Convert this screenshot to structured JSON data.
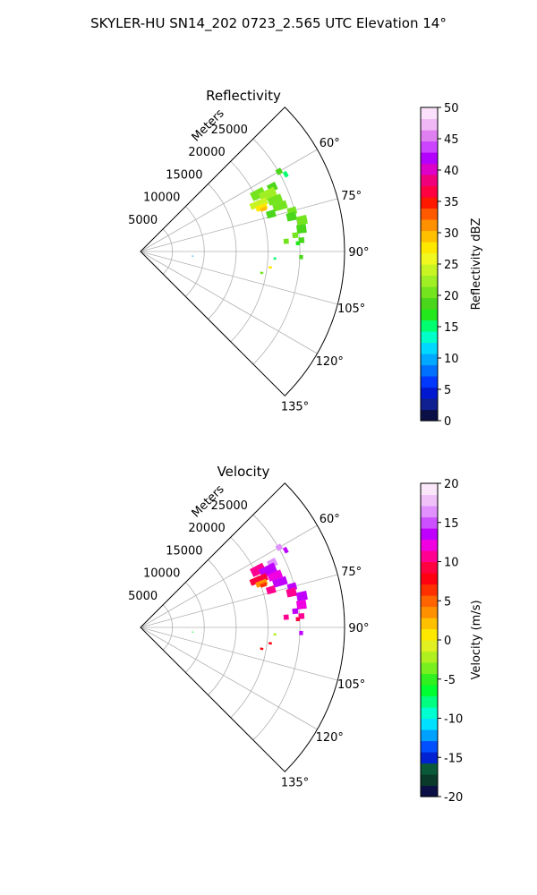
{
  "figure": {
    "title": "SKYLER-HU  SN14_202  0723_2.565 UTC Elevation 14°"
  },
  "chart_data": [
    {
      "type": "heatmap",
      "projection": "polar-sector",
      "title": "Reflectivity",
      "radial_label": "Meters",
      "r_ticks": [
        "5000",
        "10000",
        "15000",
        "20000",
        "25000"
      ],
      "r_max": 32000,
      "theta_range_deg": [
        45,
        135
      ],
      "theta_ticks": [
        "60°",
        "75°",
        "90°",
        "105°",
        "120°",
        "135°"
      ],
      "grid": true,
      "colorbar": {
        "label": "Reflectivity dBZ",
        "min": 0,
        "max": 50,
        "ticks": [
          "0",
          "5",
          "10",
          "15",
          "20",
          "25",
          "30",
          "35",
          "40",
          "45",
          "50"
        ],
        "colors": [
          "#0a1045",
          "#102090",
          "#0018d0",
          "#0038ff",
          "#0070ff",
          "#00a8ff",
          "#00d8ff",
          "#00ffc8",
          "#00ff70",
          "#22e81c",
          "#4ad61a",
          "#74e41e",
          "#a0ee24",
          "#c8f424",
          "#f0f820",
          "#ffe800",
          "#ffc000",
          "#ff9000",
          "#ff5a00",
          "#ff1800",
          "#ff0040",
          "#f0007a",
          "#dc00c8",
          "#b400ff",
          "#cc44ff",
          "#e080f0",
          "#f0b8f4",
          "#fae0fa"
        ]
      },
      "cells": [
        {
          "theta": 60,
          "r": 25100,
          "dr": 900,
          "dtheta": 2.0,
          "value": 18
        },
        {
          "theta": 62,
          "r": 25800,
          "dr": 600,
          "dtheta": 2.0,
          "value": 16
        },
        {
          "theta": 64,
          "r": 23000,
          "dr": 1400,
          "dtheta": 3.0,
          "value": 19
        },
        {
          "theta": 64,
          "r": 20500,
          "dr": 2200,
          "dtheta": 4.0,
          "value": 21
        },
        {
          "theta": 66,
          "r": 21900,
          "dr": 2600,
          "dtheta": 4.0,
          "value": 22
        },
        {
          "theta": 68,
          "r": 20000,
          "dr": 2800,
          "dtheta": 3.0,
          "value": 24
        },
        {
          "theta": 69,
          "r": 22600,
          "dr": 2200,
          "dtheta": 3.0,
          "value": 21
        },
        {
          "theta": 70,
          "r": 20200,
          "dr": 1800,
          "dtheta": 2.5,
          "value": 27
        },
        {
          "theta": 71,
          "r": 20400,
          "dr": 1000,
          "dtheta": 1.6,
          "value": 30
        },
        {
          "theta": 72,
          "r": 23000,
          "dr": 2200,
          "dtheta": 3.0,
          "value": 20
        },
        {
          "theta": 74,
          "r": 21300,
          "dr": 1400,
          "dtheta": 3.0,
          "value": 19
        },
        {
          "theta": 75,
          "r": 24600,
          "dr": 1400,
          "dtheta": 2.5,
          "value": 20
        },
        {
          "theta": 77,
          "r": 24300,
          "dr": 1500,
          "dtheta": 3.0,
          "value": 18
        },
        {
          "theta": 79,
          "r": 25800,
          "dr": 1600,
          "dtheta": 3.0,
          "value": 20
        },
        {
          "theta": 82,
          "r": 25500,
          "dr": 1500,
          "dtheta": 3.0,
          "value": 19
        },
        {
          "theta": 84,
          "r": 24400,
          "dr": 900,
          "dtheta": 2.0,
          "value": 20
        },
        {
          "theta": 86,
          "r": 25300,
          "dr": 900,
          "dtheta": 2.0,
          "value": 18
        },
        {
          "theta": 86,
          "r": 22900,
          "dr": 800,
          "dtheta": 2.0,
          "value": 21
        },
        {
          "theta": 87,
          "r": 24700,
          "dr": 600,
          "dtheta": 1.5,
          "value": 17
        },
        {
          "theta": 92,
          "r": 25200,
          "dr": 600,
          "dtheta": 1.5,
          "value": 19
        },
        {
          "theta": 93,
          "r": 21100,
          "dr": 400,
          "dtheta": 1.0,
          "value": 16
        },
        {
          "theta": 97,
          "r": 20500,
          "dr": 500,
          "dtheta": 1.0,
          "value": 28
        },
        {
          "theta": 100,
          "r": 19300,
          "dr": 500,
          "dtheta": 1.0,
          "value": 20
        },
        {
          "theta": 95,
          "r": 8200,
          "dr": 300,
          "dtheta": 0.8,
          "value": 10
        }
      ]
    },
    {
      "type": "heatmap",
      "projection": "polar-sector",
      "title": "Velocity",
      "radial_label": "Meters",
      "r_ticks": [
        "5000",
        "10000",
        "15000",
        "20000",
        "25000"
      ],
      "r_max": 32000,
      "theta_range_deg": [
        45,
        135
      ],
      "theta_ticks": [
        "60°",
        "75°",
        "90°",
        "105°",
        "120°",
        "135°"
      ],
      "grid": true,
      "colorbar": {
        "label": "Velocity (m/s)",
        "min": -20,
        "max": 20,
        "ticks": [
          "-20",
          "-15",
          "-10",
          "-5",
          "0",
          "5",
          "10",
          "15",
          "20"
        ],
        "colors": [
          "#0a1045",
          "#0a3a2a",
          "#0a5a3a",
          "#0022d0",
          "#0050ff",
          "#00a0ff",
          "#00e0ff",
          "#00ffd0",
          "#00ff80",
          "#00ff30",
          "#30f020",
          "#78f020",
          "#b0f020",
          "#e0f020",
          "#ffe800",
          "#ffc000",
          "#ff9000",
          "#ff6400",
          "#ff3000",
          "#ff0010",
          "#ff0040",
          "#ff0090",
          "#f000e0",
          "#c000ff",
          "#cc50ff",
          "#e090ff",
          "#f0c0f8",
          "#fae8fa"
        ]
      },
      "cells": [
        {
          "theta": 60,
          "r": 25100,
          "dr": 900,
          "dtheta": 2.0,
          "value": 16
        },
        {
          "theta": 62,
          "r": 25800,
          "dr": 600,
          "dtheta": 2.0,
          "value": 13
        },
        {
          "theta": 64,
          "r": 23000,
          "dr": 1400,
          "dtheta": 3.0,
          "value": 16
        },
        {
          "theta": 64,
          "r": 20500,
          "dr": 2200,
          "dtheta": 4.0,
          "value": 10
        },
        {
          "theta": 66,
          "r": 21900,
          "dr": 2600,
          "dtheta": 4.0,
          "value": 14
        },
        {
          "theta": 68,
          "r": 20000,
          "dr": 2800,
          "dtheta": 3.0,
          "value": 9
        },
        {
          "theta": 69,
          "r": 22600,
          "dr": 2200,
          "dtheta": 3.0,
          "value": 12
        },
        {
          "theta": 70,
          "r": 20200,
          "dr": 1800,
          "dtheta": 2.5,
          "value": 4
        },
        {
          "theta": 71,
          "r": 20400,
          "dr": 1000,
          "dtheta": 1.6,
          "value": 7
        },
        {
          "theta": 72,
          "r": 23000,
          "dr": 2200,
          "dtheta": 3.0,
          "value": 13
        },
        {
          "theta": 74,
          "r": 21300,
          "dr": 1400,
          "dtheta": 3.0,
          "value": 10
        },
        {
          "theta": 75,
          "r": 24600,
          "dr": 1400,
          "dtheta": 2.5,
          "value": 14
        },
        {
          "theta": 77,
          "r": 24300,
          "dr": 1500,
          "dtheta": 3.0,
          "value": 11
        },
        {
          "theta": 79,
          "r": 25800,
          "dr": 1600,
          "dtheta": 3.0,
          "value": 14
        },
        {
          "theta": 82,
          "r": 25500,
          "dr": 1500,
          "dtheta": 3.0,
          "value": 12
        },
        {
          "theta": 84,
          "r": 24400,
          "dr": 900,
          "dtheta": 2.0,
          "value": 13
        },
        {
          "theta": 86,
          "r": 25300,
          "dr": 900,
          "dtheta": 2.0,
          "value": 10
        },
        {
          "theta": 86,
          "r": 22900,
          "dr": 800,
          "dtheta": 2.0,
          "value": 11
        },
        {
          "theta": 87,
          "r": 24700,
          "dr": 600,
          "dtheta": 1.5,
          "value": 9
        },
        {
          "theta": 92,
          "r": 25200,
          "dr": 600,
          "dtheta": 1.5,
          "value": 14
        },
        {
          "theta": 93,
          "r": 21100,
          "dr": 400,
          "dtheta": 1.0,
          "value": -2
        },
        {
          "theta": 97,
          "r": 20500,
          "dr": 500,
          "dtheta": 1.0,
          "value": 8
        },
        {
          "theta": 100,
          "r": 19300,
          "dr": 500,
          "dtheta": 1.0,
          "value": 8
        },
        {
          "theta": 95,
          "r": 8200,
          "dr": 300,
          "dtheta": 0.8,
          "value": -6
        }
      ]
    }
  ]
}
